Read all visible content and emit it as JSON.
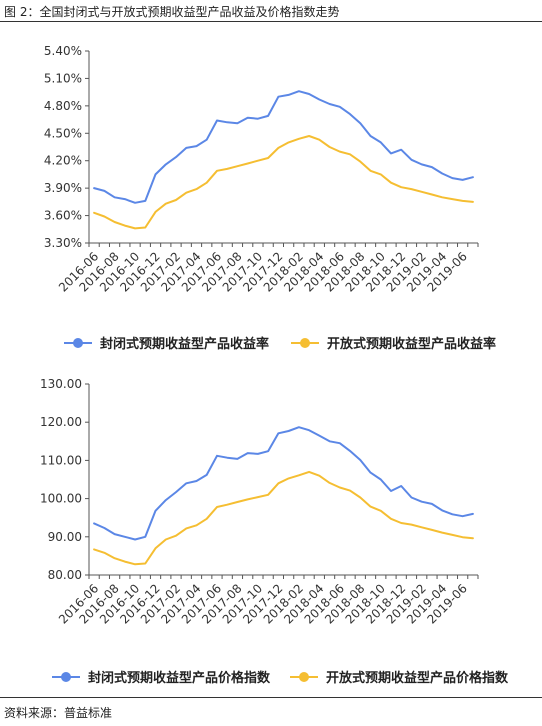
{
  "figure_title": "图 2：全国封闭式与开放式预期收益型产品收益及价格指数走势",
  "source": "资料来源：普益标准",
  "colors": {
    "closed": "#5b87e6",
    "open": "#f5be32"
  },
  "chart_data": [
    {
      "type": "line",
      "x": [
        "2016-06",
        "2016-07",
        "2016-08",
        "2016-09",
        "2016-10",
        "2016-11",
        "2016-12",
        "2017-01",
        "2017-02",
        "2017-03",
        "2017-04",
        "2017-05",
        "2017-06",
        "2017-07",
        "2017-08",
        "2017-09",
        "2017-10",
        "2017-11",
        "2017-12",
        "2018-01",
        "2018-02",
        "2018-03",
        "2018-04",
        "2018-05",
        "2018-06",
        "2018-07",
        "2018-08",
        "2018-09",
        "2018-10",
        "2018-11",
        "2018-12",
        "2019-01",
        "2019-02",
        "2019-03",
        "2019-04",
        "2019-05",
        "2019-06",
        "2019-07"
      ],
      "xticks": [
        "2016-06",
        "2016-08",
        "2016-10",
        "2016-12",
        "2017-02",
        "2017-04",
        "2017-06",
        "2017-08",
        "2017-10",
        "2017-12",
        "2018-02",
        "2018-04",
        "2018-06",
        "2018-08",
        "2018-10",
        "2018-12",
        "2019-02",
        "2019-04",
        "2019-06"
      ],
      "yticks": [
        "3.30%",
        "3.60%",
        "3.90%",
        "4.20%",
        "4.50%",
        "4.80%",
        "5.10%",
        "5.40%"
      ],
      "ylim": [
        3.3,
        5.4
      ],
      "y_unit": "%",
      "series": [
        {
          "name": "封闭式预期收益型产品收益率",
          "color": "#5b87e6",
          "values": [
            3.9,
            3.87,
            3.8,
            3.78,
            3.74,
            3.76,
            4.05,
            4.16,
            4.24,
            4.34,
            4.36,
            4.43,
            4.64,
            4.62,
            4.61,
            4.67,
            4.66,
            4.69,
            4.9,
            4.92,
            4.96,
            4.93,
            4.87,
            4.82,
            4.79,
            4.71,
            4.61,
            4.47,
            4.4,
            4.28,
            4.32,
            4.21,
            4.16,
            4.13,
            4.06,
            4.01,
            3.99,
            4.02
          ]
        },
        {
          "name": "开放式预期收益型产品收益率",
          "color": "#f5be32",
          "values": [
            3.63,
            3.59,
            3.53,
            3.49,
            3.46,
            3.47,
            3.64,
            3.73,
            3.77,
            3.85,
            3.89,
            3.96,
            4.09,
            4.11,
            4.14,
            4.17,
            4.2,
            4.23,
            4.34,
            4.4,
            4.44,
            4.47,
            4.43,
            4.35,
            4.3,
            4.27,
            4.19,
            4.09,
            4.05,
            3.96,
            3.91,
            3.89,
            3.86,
            3.83,
            3.8,
            3.78,
            3.76,
            3.75
          ]
        }
      ]
    },
    {
      "type": "line",
      "x": [
        "2016-06",
        "2016-07",
        "2016-08",
        "2016-09",
        "2016-10",
        "2016-11",
        "2016-12",
        "2017-01",
        "2017-02",
        "2017-03",
        "2017-04",
        "2017-05",
        "2017-06",
        "2017-07",
        "2017-08",
        "2017-09",
        "2017-10",
        "2017-11",
        "2017-12",
        "2018-01",
        "2018-02",
        "2018-03",
        "2018-04",
        "2018-05",
        "2018-06",
        "2018-07",
        "2018-08",
        "2018-09",
        "2018-10",
        "2018-11",
        "2018-12",
        "2019-01",
        "2019-02",
        "2019-03",
        "2019-04",
        "2019-05",
        "2019-06",
        "2019-07"
      ],
      "xticks": [
        "2016-06",
        "2016-08",
        "2016-10",
        "2016-12",
        "2017-02",
        "2017-04",
        "2017-06",
        "2017-08",
        "2017-10",
        "2017-12",
        "2018-02",
        "2018-04",
        "2018-06",
        "2018-08",
        "2018-10",
        "2018-12",
        "2019-02",
        "2019-04",
        "2019-06"
      ],
      "yticks": [
        "80.00",
        "90.00",
        "100.00",
        "110.00",
        "120.00",
        "130.00"
      ],
      "ylim": [
        80,
        130
      ],
      "y_unit": "",
      "series": [
        {
          "name": "封闭式预期收益型产品价格指数",
          "color": "#5b87e6",
          "values": [
            93.5,
            92.3,
            90.7,
            90.0,
            89.3,
            90.0,
            96.8,
            99.6,
            101.7,
            104.0,
            104.6,
            106.2,
            111.2,
            110.7,
            110.4,
            111.9,
            111.7,
            112.4,
            117.1,
            117.7,
            118.7,
            117.9,
            116.5,
            115.0,
            114.5,
            112.5,
            110.1,
            106.8,
            105.0,
            102.0,
            103.3,
            100.3,
            99.2,
            98.6,
            96.9,
            95.9,
            95.4,
            96.0
          ]
        },
        {
          "name": "开放式预期收益型产品价格指数",
          "color": "#f5be32",
          "values": [
            86.7,
            85.8,
            84.4,
            83.5,
            82.8,
            83.0,
            87.0,
            89.3,
            90.3,
            92.2,
            93.0,
            94.7,
            97.8,
            98.4,
            99.1,
            99.8,
            100.4,
            101.0,
            104.0,
            105.3,
            106.1,
            107.0,
            106.0,
            104.1,
            102.9,
            102.1,
            100.3,
            97.9,
            96.8,
            94.7,
            93.6,
            93.2,
            92.5,
            91.8,
            91.1,
            90.5,
            89.9,
            89.6
          ]
        }
      ]
    }
  ]
}
